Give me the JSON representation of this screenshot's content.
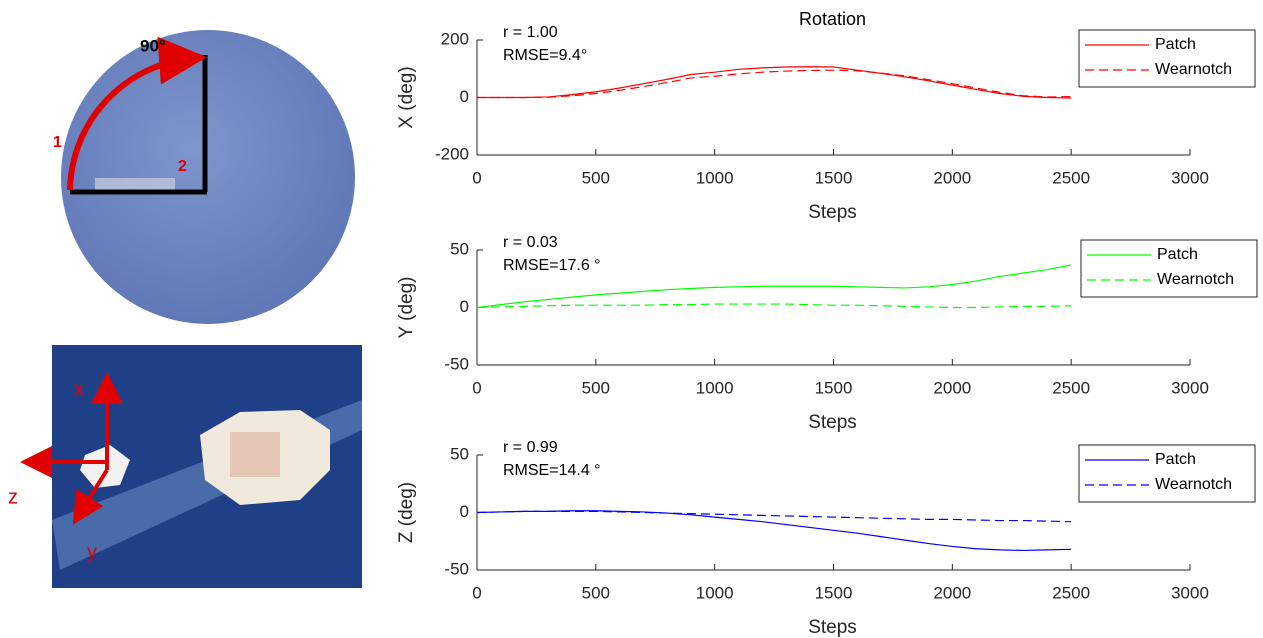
{
  "photos": {
    "angle_label": "90°",
    "arc_label": "1",
    "arm_label": "2",
    "axis_x": "x",
    "axis_y": "y",
    "axis_z": "z"
  },
  "chart_data": [
    {
      "type": "line",
      "title": "Rotation",
      "annotations": [
        "r = 1.00",
        "RMSE=9.4°"
      ],
      "xlabel": "Steps",
      "ylabel": "X (deg)",
      "x": [
        0,
        100,
        200,
        300,
        400,
        500,
        600,
        700,
        800,
        900,
        1000,
        1100,
        1200,
        1300,
        1400,
        1500,
        1600,
        1700,
        1800,
        1900,
        2000,
        2100,
        2200,
        2300,
        2400,
        2500
      ],
      "series": [
        {
          "name": "Patch",
          "color": "#ff0000",
          "linestyle": "solid",
          "values": [
            0,
            0,
            0,
            2,
            10,
            20,
            33,
            48,
            63,
            80,
            88,
            98,
            103,
            106,
            107,
            106,
            95,
            84,
            72,
            58,
            43,
            28,
            14,
            4,
            0,
            -2
          ]
        },
        {
          "name": "Wearnotch",
          "color": "#ff0000",
          "linestyle": "dashed",
          "values": [
            0,
            0,
            0,
            1,
            6,
            14,
            25,
            38,
            52,
            68,
            74,
            82,
            88,
            92,
            94,
            95,
            93,
            85,
            75,
            62,
            48,
            33,
            18,
            6,
            2,
            3
          ]
        }
      ],
      "xlim": [
        0,
        3000
      ],
      "xticks": [
        0,
        500,
        1000,
        1500,
        2000,
        2500,
        3000
      ],
      "ylim": [
        -200,
        200
      ],
      "yticks": [
        -200,
        0,
        200
      ],
      "legend": "upper right"
    },
    {
      "type": "line",
      "annotations": [
        "r = 0.03",
        "RMSE=17.6 °"
      ],
      "xlabel": "Steps",
      "ylabel": "Y (deg)",
      "x": [
        0,
        100,
        200,
        300,
        400,
        500,
        600,
        700,
        800,
        900,
        1000,
        1100,
        1200,
        1300,
        1400,
        1500,
        1600,
        1700,
        1800,
        1900,
        2000,
        2100,
        2200,
        2300,
        2400,
        2500
      ],
      "series": [
        {
          "name": "Patch",
          "color": "#00ff00",
          "linestyle": "solid",
          "values": [
            0,
            2.5,
            5,
            7,
            9,
            11,
            12.5,
            14,
            15.5,
            16.5,
            17.5,
            18,
            18.5,
            18.5,
            18.5,
            18.5,
            18,
            17.5,
            17,
            18,
            20,
            23,
            27,
            30,
            33,
            37
          ]
        },
        {
          "name": "Wearnotch",
          "color": "#00ff00",
          "linestyle": "dashed",
          "values": [
            0,
            0.5,
            1,
            1.5,
            2,
            2,
            2,
            2,
            2.5,
            2.5,
            3,
            3,
            3,
            3,
            2.5,
            2,
            2,
            1.5,
            1,
            0.5,
            0,
            0,
            0.5,
            1,
            1,
            1.5
          ]
        }
      ],
      "xlim": [
        0,
        3000
      ],
      "xticks": [
        0,
        500,
        1000,
        1500,
        2000,
        2500,
        3000
      ],
      "ylim": [
        -50,
        50
      ],
      "yticks": [
        -50,
        0,
        50
      ],
      "legend": "upper right"
    },
    {
      "type": "line",
      "annotations": [
        "r = 0.99",
        "RMSE=14.4 °"
      ],
      "xlabel": "Steps",
      "ylabel": "Z (deg)",
      "x": [
        0,
        100,
        200,
        300,
        400,
        500,
        600,
        700,
        800,
        900,
        1000,
        1100,
        1200,
        1300,
        1400,
        1500,
        1600,
        1700,
        1800,
        1900,
        2000,
        2100,
        2200,
        2300,
        2400,
        2500
      ],
      "series": [
        {
          "name": "Patch",
          "color": "#0000ff",
          "linestyle": "solid",
          "values": [
            0,
            0.5,
            1,
            1,
            1.5,
            1.5,
            1,
            0.5,
            -0.5,
            -2,
            -4,
            -6,
            -8,
            -10.5,
            -13,
            -15.5,
            -18,
            -21,
            -24,
            -27,
            -29.5,
            -31.5,
            -32.5,
            -33,
            -32.5,
            -32
          ]
        },
        {
          "name": "Wearnotch",
          "color": "#0000ff",
          "linestyle": "dashed",
          "values": [
            0,
            0.5,
            1,
            1,
            1,
            1,
            0.5,
            0,
            -0.5,
            -1,
            -1.5,
            -2,
            -2.5,
            -3,
            -3.5,
            -4,
            -4.5,
            -5,
            -5.5,
            -6,
            -6,
            -6.5,
            -7,
            -7,
            -7.5,
            -8
          ]
        }
      ],
      "xlim": [
        0,
        3000
      ],
      "xticks": [
        0,
        500,
        1000,
        1500,
        2000,
        2500,
        3000
      ],
      "ylim": [
        -50,
        50
      ],
      "yticks": [
        -50,
        0,
        50
      ],
      "legend": "upper right"
    }
  ]
}
